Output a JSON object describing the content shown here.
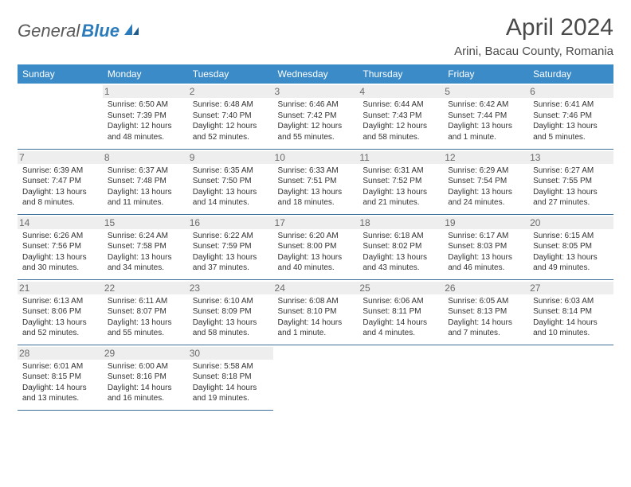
{
  "brand": {
    "name1": "General",
    "name2": "Blue"
  },
  "header": {
    "title": "April 2024",
    "location": "Arini, Bacau County, Romania"
  },
  "colors": {
    "header_bg": "#3b8bc8",
    "header_fg": "#ffffff",
    "line": "#3b6e9a",
    "daynum_bg": "#eeeeee",
    "brand_blue": "#2c7bba"
  },
  "daynames": [
    "Sunday",
    "Monday",
    "Tuesday",
    "Wednesday",
    "Thursday",
    "Friday",
    "Saturday"
  ],
  "weeks": [
    [
      null,
      {
        "n": "1",
        "sr": "6:50 AM",
        "ss": "7:39 PM",
        "dl": "12 hours and 48 minutes."
      },
      {
        "n": "2",
        "sr": "6:48 AM",
        "ss": "7:40 PM",
        "dl": "12 hours and 52 minutes."
      },
      {
        "n": "3",
        "sr": "6:46 AM",
        "ss": "7:42 PM",
        "dl": "12 hours and 55 minutes."
      },
      {
        "n": "4",
        "sr": "6:44 AM",
        "ss": "7:43 PM",
        "dl": "12 hours and 58 minutes."
      },
      {
        "n": "5",
        "sr": "6:42 AM",
        "ss": "7:44 PM",
        "dl": "13 hours and 1 minute."
      },
      {
        "n": "6",
        "sr": "6:41 AM",
        "ss": "7:46 PM",
        "dl": "13 hours and 5 minutes."
      }
    ],
    [
      {
        "n": "7",
        "sr": "6:39 AM",
        "ss": "7:47 PM",
        "dl": "13 hours and 8 minutes."
      },
      {
        "n": "8",
        "sr": "6:37 AM",
        "ss": "7:48 PM",
        "dl": "13 hours and 11 minutes."
      },
      {
        "n": "9",
        "sr": "6:35 AM",
        "ss": "7:50 PM",
        "dl": "13 hours and 14 minutes."
      },
      {
        "n": "10",
        "sr": "6:33 AM",
        "ss": "7:51 PM",
        "dl": "13 hours and 18 minutes."
      },
      {
        "n": "11",
        "sr": "6:31 AM",
        "ss": "7:52 PM",
        "dl": "13 hours and 21 minutes."
      },
      {
        "n": "12",
        "sr": "6:29 AM",
        "ss": "7:54 PM",
        "dl": "13 hours and 24 minutes."
      },
      {
        "n": "13",
        "sr": "6:27 AM",
        "ss": "7:55 PM",
        "dl": "13 hours and 27 minutes."
      }
    ],
    [
      {
        "n": "14",
        "sr": "6:26 AM",
        "ss": "7:56 PM",
        "dl": "13 hours and 30 minutes."
      },
      {
        "n": "15",
        "sr": "6:24 AM",
        "ss": "7:58 PM",
        "dl": "13 hours and 34 minutes."
      },
      {
        "n": "16",
        "sr": "6:22 AM",
        "ss": "7:59 PM",
        "dl": "13 hours and 37 minutes."
      },
      {
        "n": "17",
        "sr": "6:20 AM",
        "ss": "8:00 PM",
        "dl": "13 hours and 40 minutes."
      },
      {
        "n": "18",
        "sr": "6:18 AM",
        "ss": "8:02 PM",
        "dl": "13 hours and 43 minutes."
      },
      {
        "n": "19",
        "sr": "6:17 AM",
        "ss": "8:03 PM",
        "dl": "13 hours and 46 minutes."
      },
      {
        "n": "20",
        "sr": "6:15 AM",
        "ss": "8:05 PM",
        "dl": "13 hours and 49 minutes."
      }
    ],
    [
      {
        "n": "21",
        "sr": "6:13 AM",
        "ss": "8:06 PM",
        "dl": "13 hours and 52 minutes."
      },
      {
        "n": "22",
        "sr": "6:11 AM",
        "ss": "8:07 PM",
        "dl": "13 hours and 55 minutes."
      },
      {
        "n": "23",
        "sr": "6:10 AM",
        "ss": "8:09 PM",
        "dl": "13 hours and 58 minutes."
      },
      {
        "n": "24",
        "sr": "6:08 AM",
        "ss": "8:10 PM",
        "dl": "14 hours and 1 minute."
      },
      {
        "n": "25",
        "sr": "6:06 AM",
        "ss": "8:11 PM",
        "dl": "14 hours and 4 minutes."
      },
      {
        "n": "26",
        "sr": "6:05 AM",
        "ss": "8:13 PM",
        "dl": "14 hours and 7 minutes."
      },
      {
        "n": "27",
        "sr": "6:03 AM",
        "ss": "8:14 PM",
        "dl": "14 hours and 10 minutes."
      }
    ],
    [
      {
        "n": "28",
        "sr": "6:01 AM",
        "ss": "8:15 PM",
        "dl": "14 hours and 13 minutes."
      },
      {
        "n": "29",
        "sr": "6:00 AM",
        "ss": "8:16 PM",
        "dl": "14 hours and 16 minutes."
      },
      {
        "n": "30",
        "sr": "5:58 AM",
        "ss": "8:18 PM",
        "dl": "14 hours and 19 minutes."
      },
      null,
      null,
      null,
      null
    ]
  ],
  "labels": {
    "sunrise": "Sunrise:",
    "sunset": "Sunset:",
    "daylight": "Daylight:"
  }
}
